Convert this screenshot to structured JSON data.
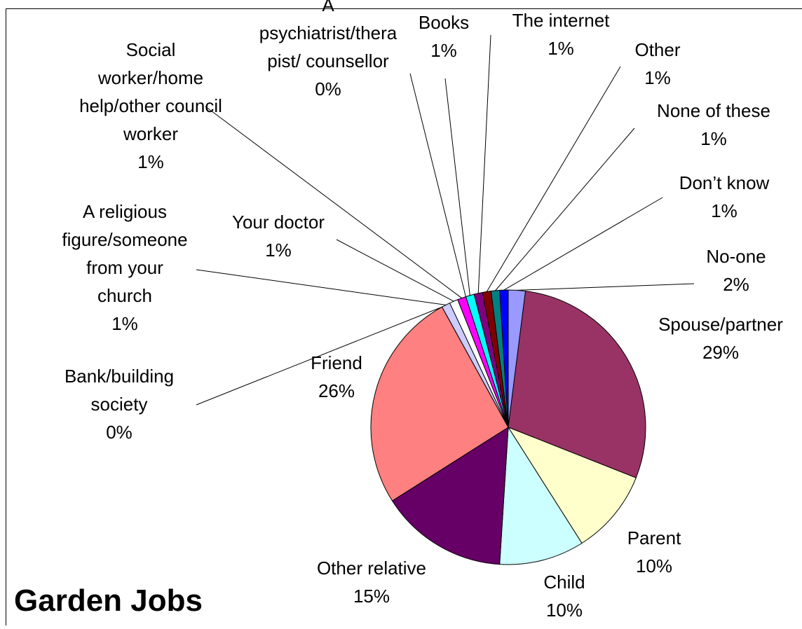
{
  "chart_data": {
    "type": "pie",
    "title": "Garden Jobs",
    "categories": [
      "No-one",
      "Spouse/partner",
      "Parent",
      "Child",
      "Other relative",
      "Friend",
      "Bank/building society",
      "A religious figure/someone from your church",
      "Your doctor",
      "Social worker/home help/other council worker",
      "A psychiatrist/therapist/ counsellor",
      "Books",
      "The internet",
      "Other",
      "None of these",
      "Don’t know"
    ],
    "values": [
      2,
      29,
      10,
      10,
      15,
      26,
      0,
      1,
      1,
      1,
      0,
      1,
      1,
      1,
      1,
      1
    ],
    "value_labels": [
      "2%",
      "29%",
      "10%",
      "10%",
      "15%",
      "26%",
      "0%",
      "1%",
      "1%",
      "1%",
      "0%",
      "1%",
      "1%",
      "1%",
      "1%",
      "1%"
    ],
    "colors": [
      "#9999ff",
      "#993366",
      "#ffffcc",
      "#ccffff",
      "#660066",
      "#ff8080",
      "#0066cc",
      "#ccccff",
      "#ffffff",
      "#ff00ff",
      "#ffff00",
      "#00ffff",
      "#800080",
      "#800000",
      "#008080",
      "#0000ff"
    ]
  }
}
